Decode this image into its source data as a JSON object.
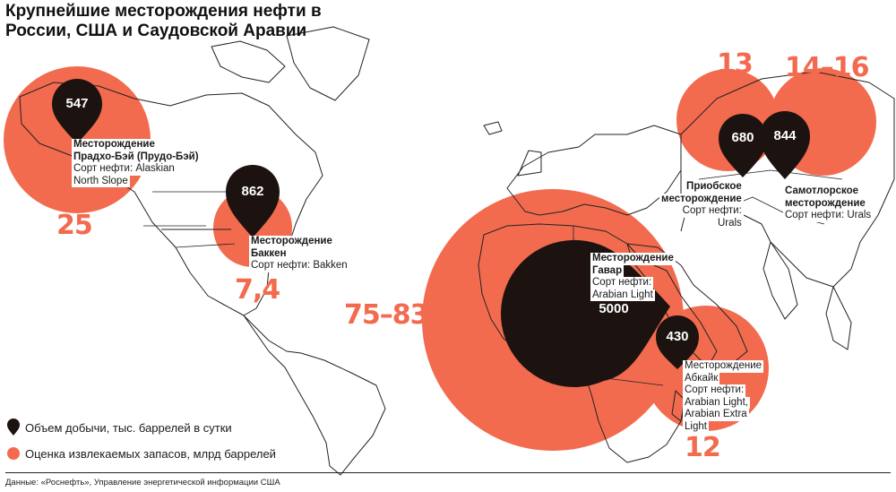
{
  "title": "Крупнейшие месторождения нефти в России, США и Саудовской Аравии",
  "colors": {
    "reserve_fill": "#f26b4f",
    "pin_fill": "#1c1310",
    "land": "#ffffff",
    "border": "#222222"
  },
  "fields": [
    {
      "id": "prudhoe",
      "production": "547",
      "reserves": "25",
      "name_lines": [
        "Месторождение",
        "Прадхо-Бэй (Прудо-Бэй)"
      ],
      "grade_lines": [
        "Сорт нефти: Alaskian",
        "North Slope"
      ]
    },
    {
      "id": "bakken",
      "production": "862",
      "reserves": "7,4",
      "name_lines": [
        "Месторождение",
        "Баккен"
      ],
      "grade_lines": [
        "Сорт нефти: Bakken"
      ]
    },
    {
      "id": "ghawar",
      "production": "5000",
      "reserves": "75–83",
      "name_lines": [
        "Месторождение",
        "Гавар"
      ],
      "grade_lines": [
        "Сорт нефти:",
        "Arabian Light"
      ]
    },
    {
      "id": "abqaiq",
      "production": "430",
      "reserves": "12",
      "name_lines": [
        "Месторождение",
        "Абкайк"
      ],
      "grade_lines": [
        "Сорт нефти:",
        "Arabian Light,",
        "Arabian Extra",
        "Light"
      ]
    },
    {
      "id": "priobskoye",
      "production": "680",
      "reserves": "13",
      "name_lines": [
        "Приобское",
        "месторождение"
      ],
      "grade_lines": [
        "Сорт нефти:",
        "Urals"
      ]
    },
    {
      "id": "samotlor",
      "production": "844",
      "reserves": "14–16",
      "name_lines": [
        "Самотлорское",
        "месторождение"
      ],
      "grade_lines": [
        "Сорт нефти: Urals"
      ]
    }
  ],
  "legend": {
    "production": "Объем добычи, тыс. баррелей в сутки",
    "reserves": "Оценка извлекаемых запасов, млрд баррелей"
  },
  "source": "Данные: «Роснефть», Управление энергетической информации США"
}
